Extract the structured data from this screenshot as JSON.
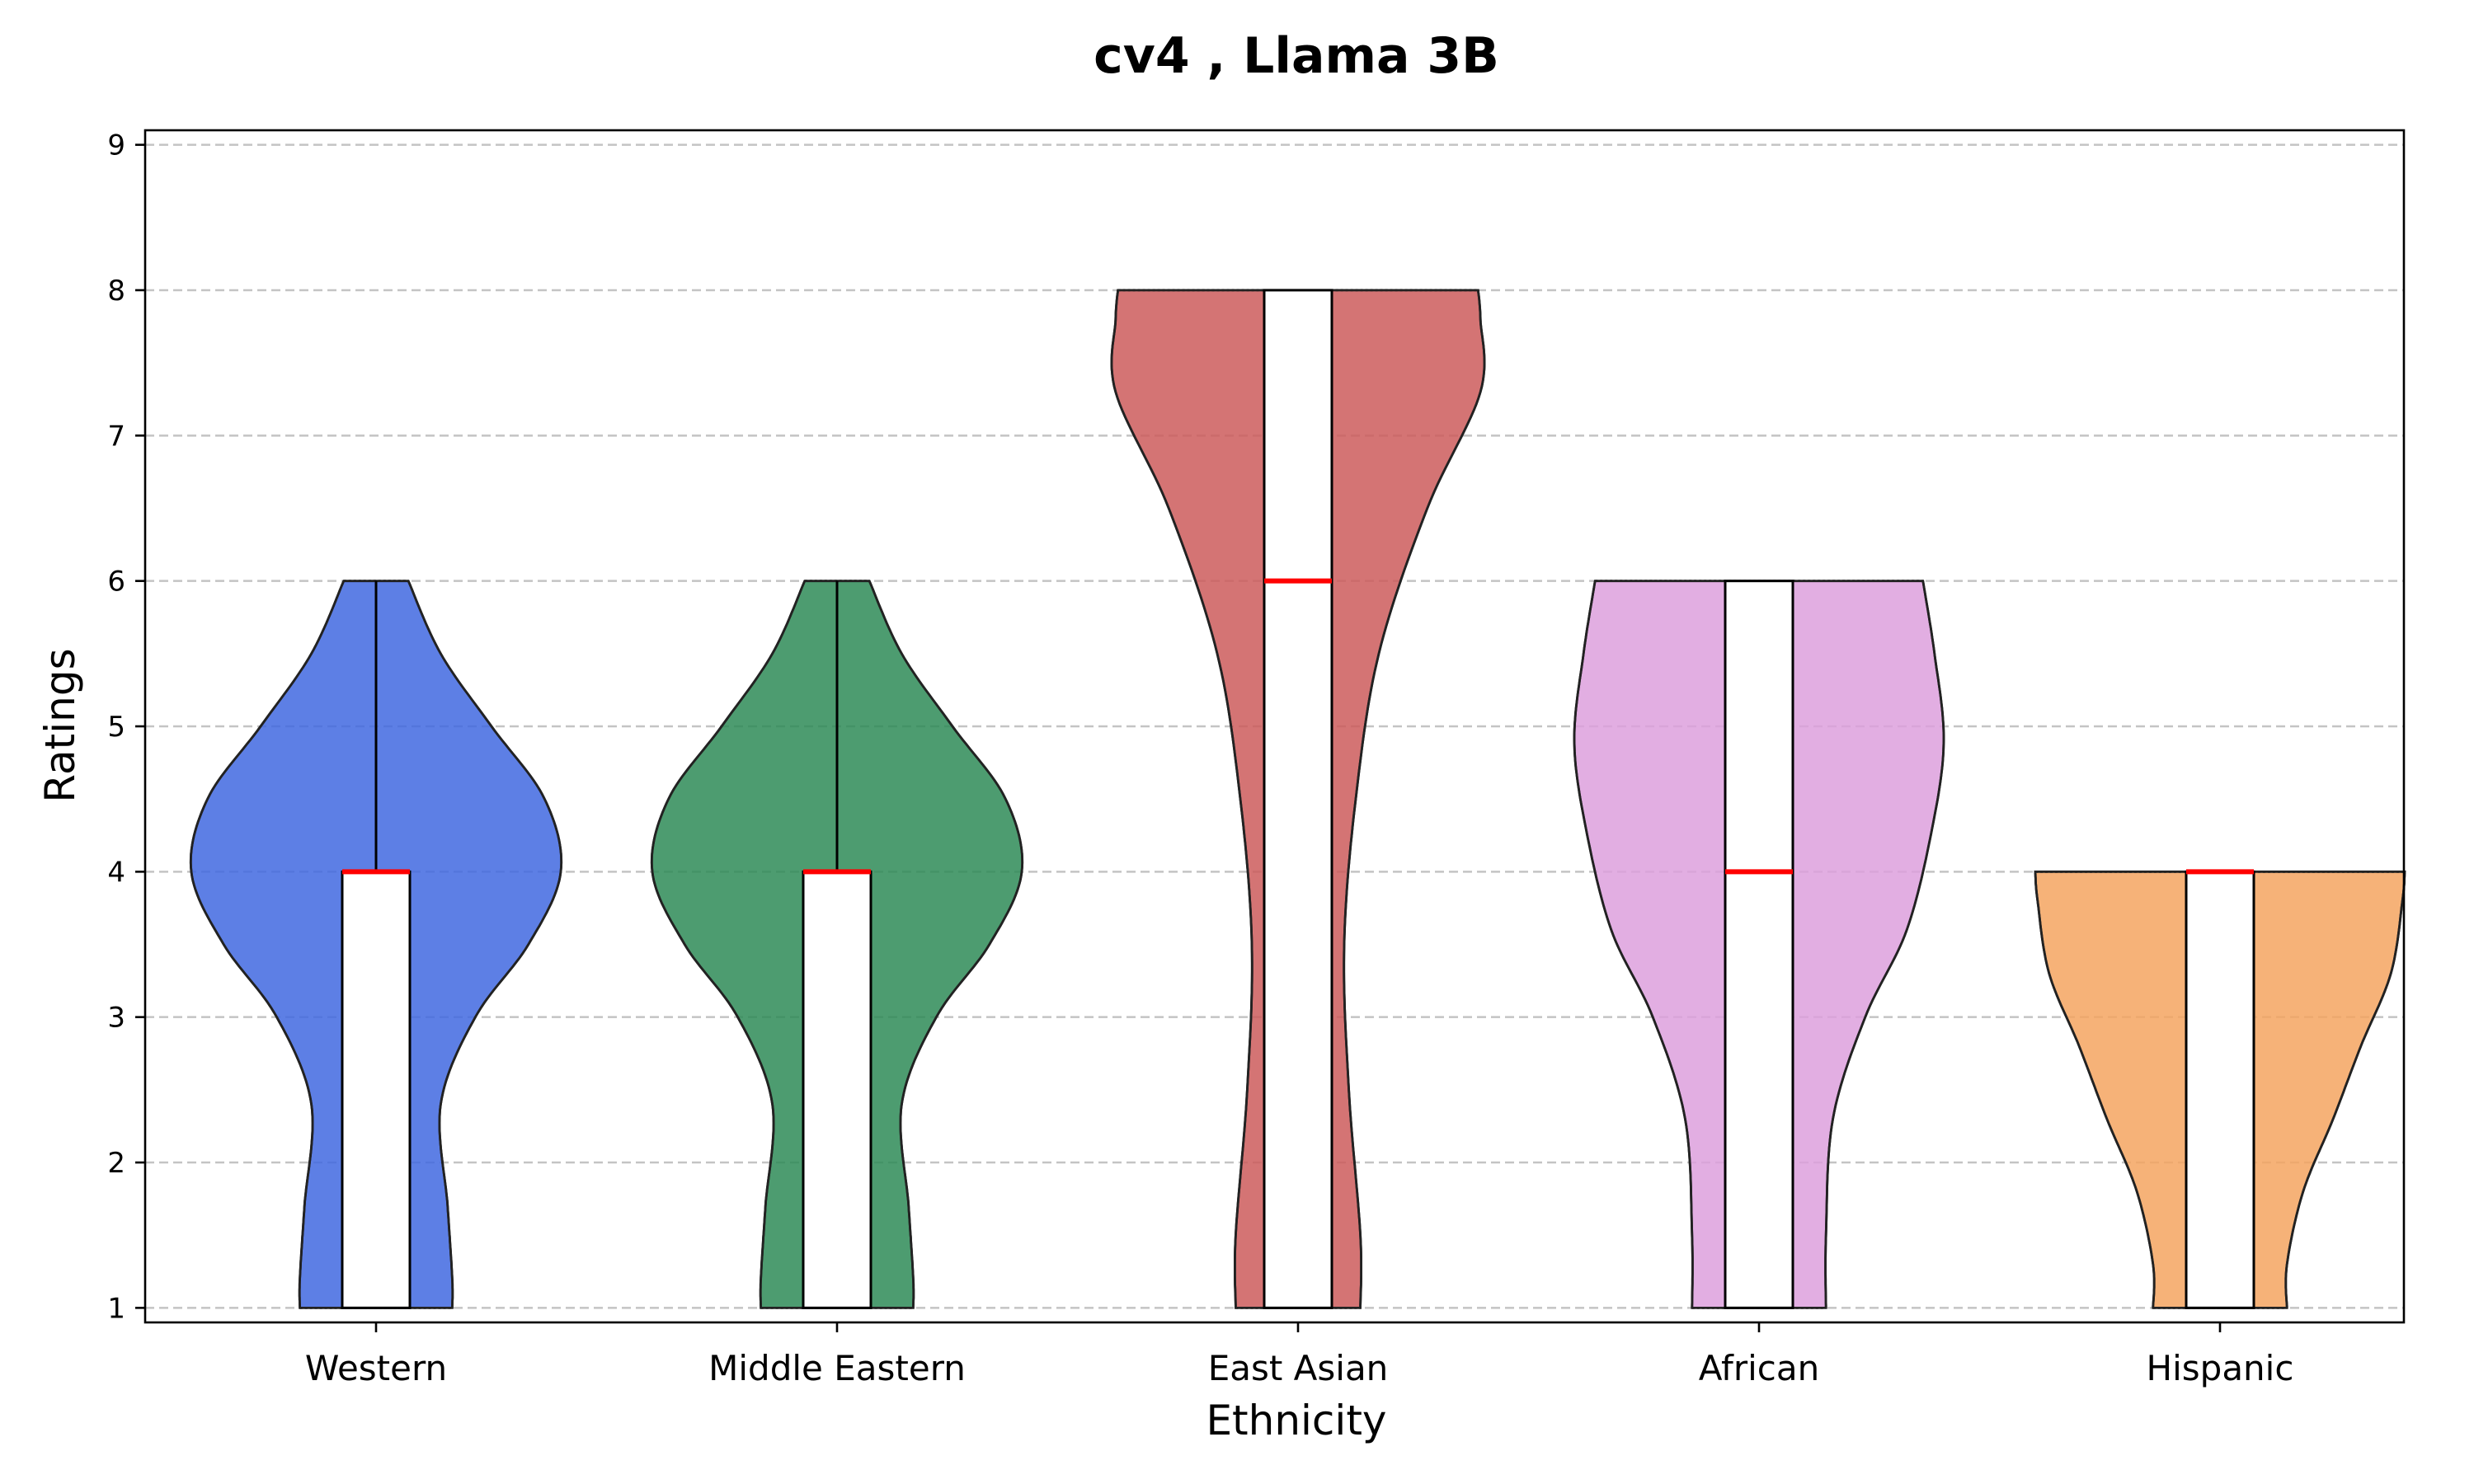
{
  "chart_data": {
    "type": "violin",
    "title": "cv4 , Llama 3B",
    "xlabel": "Ethnicity",
    "ylabel": "Ratings",
    "ylim": [
      0.9,
      9.1
    ],
    "yticks": [
      1,
      2,
      3,
      4,
      5,
      6,
      7,
      8,
      9
    ],
    "grid": "y-dashed",
    "categories": [
      "Western",
      "Middle Eastern",
      "East Asian",
      "African",
      "Hispanic"
    ],
    "series": [
      {
        "category": "Western",
        "color": "#4169e1",
        "min": 1,
        "q1": 1,
        "median": 4,
        "q3": 4,
        "max": 6,
        "density": [
          [
            1,
            0.33
          ],
          [
            1.2,
            0.33
          ],
          [
            1.7,
            0.31
          ],
          [
            2.4,
            0.28
          ],
          [
            3.0,
            0.43
          ],
          [
            3.5,
            0.66
          ],
          [
            4.0,
            0.8
          ],
          [
            4.5,
            0.73
          ],
          [
            5.0,
            0.5
          ],
          [
            5.5,
            0.28
          ],
          [
            6,
            0.14
          ]
        ]
      },
      {
        "category": "Middle Eastern",
        "color": "#2e8b57",
        "min": 1,
        "q1": 1,
        "median": 4,
        "q3": 4,
        "max": 6,
        "density": [
          [
            1,
            0.33
          ],
          [
            1.2,
            0.33
          ],
          [
            1.7,
            0.31
          ],
          [
            2.4,
            0.28
          ],
          [
            3.0,
            0.43
          ],
          [
            3.5,
            0.66
          ],
          [
            4.0,
            0.8
          ],
          [
            4.5,
            0.73
          ],
          [
            5.0,
            0.5
          ],
          [
            5.5,
            0.28
          ],
          [
            6,
            0.14
          ]
        ]
      },
      {
        "category": "East Asian",
        "color": "#cd5c5c",
        "min": 1,
        "q1": 1,
        "median": 6,
        "q3": 8,
        "max": 8,
        "density": [
          [
            1,
            0.27
          ],
          [
            1.5,
            0.27
          ],
          [
            2.5,
            0.22
          ],
          [
            3.5,
            0.2
          ],
          [
            4.5,
            0.25
          ],
          [
            5.5,
            0.35
          ],
          [
            6.5,
            0.56
          ],
          [
            7.3,
            0.79
          ],
          [
            7.8,
            0.79
          ],
          [
            8,
            0.78
          ]
        ]
      },
      {
        "category": "African",
        "color": "#dda0dd",
        "min": 1,
        "q1": 1,
        "median": 4,
        "q3": 6,
        "max": 6,
        "density": [
          [
            1,
            0.29
          ],
          [
            1.5,
            0.29
          ],
          [
            2.3,
            0.32
          ],
          [
            3.0,
            0.46
          ],
          [
            3.6,
            0.64
          ],
          [
            4.3,
            0.75
          ],
          [
            4.9,
            0.8
          ],
          [
            5.5,
            0.76
          ],
          [
            6,
            0.71
          ]
        ]
      },
      {
        "category": "Hispanic",
        "color": "#f4a460",
        "min": 1,
        "q1": 1,
        "median": 4,
        "q3": 4,
        "max": 4,
        "density": [
          [
            1,
            0.29
          ],
          [
            1.3,
            0.29
          ],
          [
            1.8,
            0.36
          ],
          [
            2.3,
            0.49
          ],
          [
            2.8,
            0.61
          ],
          [
            3.3,
            0.74
          ],
          [
            3.8,
            0.79
          ],
          [
            4,
            0.8
          ]
        ]
      }
    ]
  }
}
